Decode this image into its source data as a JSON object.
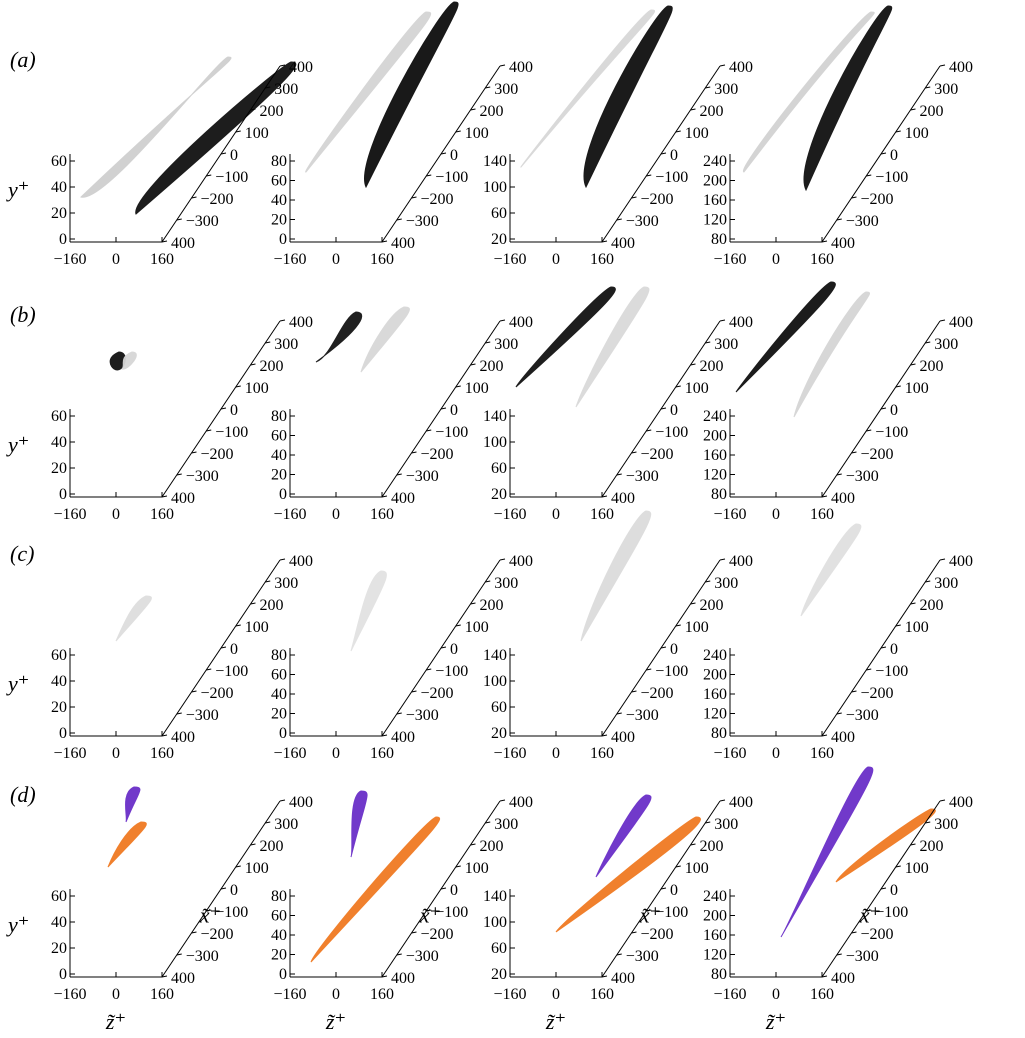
{
  "figure": {
    "rows": [
      {
        "label": "(a)",
        "blobs": [
          [
            "#cfcfcf",
            "#111111"
          ],
          [
            "#d4d4d4",
            "#0d0d0d"
          ],
          [
            "#d8d8d8",
            "#0f0f0f"
          ],
          [
            "#d2d2d2",
            "#101010"
          ]
        ]
      },
      {
        "label": "(b)",
        "blobs": [
          [
            "#111111",
            "#d6d6d6"
          ],
          [
            "#151515",
            "#d8d8d8"
          ],
          [
            "#121212",
            "#dadada"
          ],
          [
            "#101010",
            "#d5d5d5"
          ]
        ]
      },
      {
        "label": "(c)",
        "blobs": [
          [
            "#dedede"
          ],
          [
            "#e2e2e2"
          ],
          [
            "#dcdcdc"
          ],
          [
            "#e0e0e0"
          ]
        ]
      },
      {
        "label": "(d)",
        "blobs": [
          [
            "#6a2fc8",
            "#f07a22"
          ],
          [
            "#6a2fc8",
            "#f07a22"
          ],
          [
            "#6a2fc8",
            "#f07a22"
          ],
          [
            "#6a2fc8",
            "#f07a22"
          ]
        ]
      }
    ],
    "y_ticks": [
      [
        "0",
        "20",
        "40",
        "60"
      ],
      [
        "0",
        "20",
        "40",
        "60",
        "80"
      ],
      [
        "20",
        "60",
        "100",
        "140"
      ],
      [
        "80",
        "120",
        "160",
        "200",
        "240"
      ]
    ],
    "z_ticks": [
      "−160",
      "0",
      "160"
    ],
    "x_ticks": [
      "400",
      "300",
      "200",
      "100",
      "0",
      "−100",
      "−200",
      "−300",
      "400"
    ],
    "y_label": "y⁺",
    "z_label": "z̃⁺",
    "x_label": "x̃⁺"
  }
}
